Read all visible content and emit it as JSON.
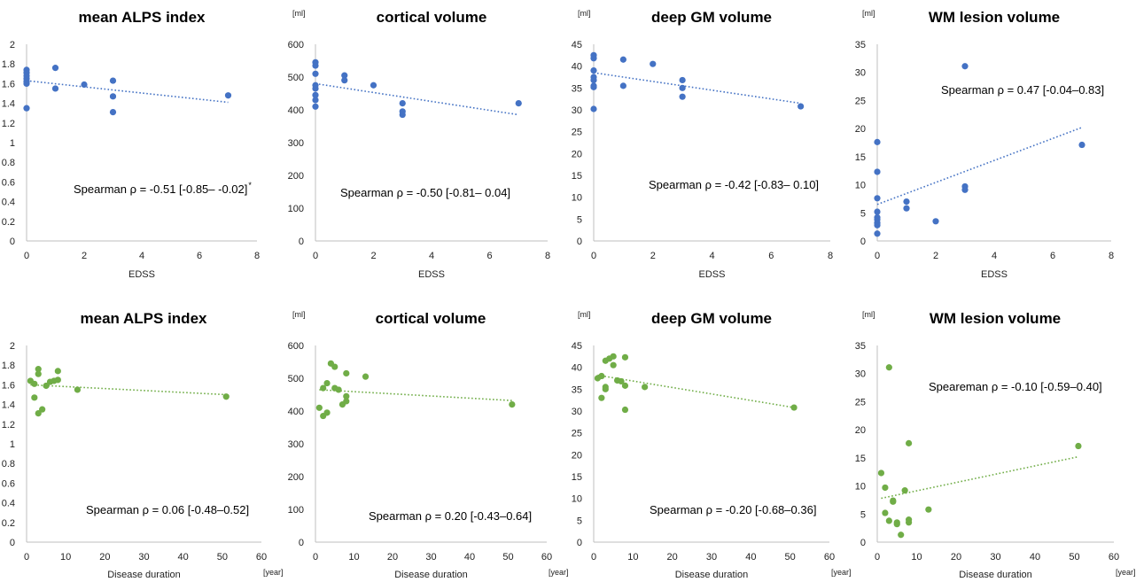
{
  "colors": {
    "top_series": "#4472C4",
    "bottom_series": "#70AD47",
    "axis": "#bfbfbf"
  },
  "chart_data": [
    {
      "type": "scatter",
      "title": "mean ALPS index",
      "unit": "",
      "xlabel": "EDSS",
      "xunit": "",
      "xlim": [
        0,
        8
      ],
      "xticks": [
        0,
        2,
        4,
        6,
        8
      ],
      "ylim": [
        0,
        2
      ],
      "yticks": [
        0,
        0.2,
        0.4,
        0.6,
        0.8,
        1,
        1.2,
        1.4,
        1.6,
        1.8,
        2
      ],
      "ytick_labels": [
        "0",
        "0.2",
        "0.4",
        "0.6",
        "0.8",
        "1",
        "1.2",
        "1.4",
        "1.6",
        "1.8",
        "2"
      ],
      "color": "#4472C4",
      "points": [
        [
          0,
          1.74
        ],
        [
          0,
          1.71
        ],
        [
          0,
          1.68
        ],
        [
          0,
          1.65
        ],
        [
          0,
          1.62
        ],
        [
          0,
          1.6
        ],
        [
          0,
          1.35
        ],
        [
          1,
          1.76
        ],
        [
          1,
          1.55
        ],
        [
          2,
          1.59
        ],
        [
          3,
          1.63
        ],
        [
          3,
          1.47
        ],
        [
          3,
          1.31
        ],
        [
          7,
          1.48
        ]
      ],
      "trend": [
        [
          0,
          1.63
        ],
        [
          7,
          1.41
        ]
      ],
      "annotation": "Spearman ρ = -0.51 [-0.85– -0.02]",
      "annotation_sup": "*"
    },
    {
      "type": "scatter",
      "title": "cortical volume",
      "unit": "[ml]",
      "xlabel": "EDSS",
      "xunit": "",
      "xlim": [
        0,
        8
      ],
      "xticks": [
        0,
        2,
        4,
        6,
        8
      ],
      "ylim": [
        0,
        600
      ],
      "yticks": [
        0,
        100,
        200,
        300,
        400,
        500,
        600
      ],
      "ytick_labels": [
        "0",
        "100",
        "200",
        "300",
        "400",
        "500",
        "600"
      ],
      "color": "#4472C4",
      "points": [
        [
          0,
          545
        ],
        [
          0,
          535
        ],
        [
          0,
          510
        ],
        [
          0,
          475
        ],
        [
          0,
          465
        ],
        [
          0,
          445
        ],
        [
          0,
          430
        ],
        [
          0,
          410
        ],
        [
          1,
          505
        ],
        [
          1,
          490
        ],
        [
          2,
          475
        ],
        [
          3,
          420
        ],
        [
          3,
          395
        ],
        [
          3,
          385
        ],
        [
          7,
          420
        ]
      ],
      "trend": [
        [
          0,
          480
        ],
        [
          7,
          385
        ]
      ],
      "annotation": "Spearman ρ = -0.50 [-0.81– 0.04]",
      "annotation_sup": ""
    },
    {
      "type": "scatter",
      "title": "deep GM volume",
      "unit": "[ml]",
      "xlabel": "EDSS",
      "xunit": "",
      "xlim": [
        0,
        8
      ],
      "xticks": [
        0,
        2,
        4,
        6,
        8
      ],
      "ylim": [
        0,
        45
      ],
      "yticks": [
        0,
        5,
        10,
        15,
        20,
        25,
        30,
        35,
        40,
        45
      ],
      "ytick_labels": [
        "0",
        "5",
        "10",
        "15",
        "20",
        "25",
        "30",
        "35",
        "40",
        "45"
      ],
      "color": "#4472C4",
      "points": [
        [
          0,
          42.5
        ],
        [
          0,
          41.8
        ],
        [
          0,
          39
        ],
        [
          0,
          37.5
        ],
        [
          0,
          36.8
        ],
        [
          0,
          35.5
        ],
        [
          0,
          35.2
        ],
        [
          0,
          30.2
        ],
        [
          1,
          41.5
        ],
        [
          1,
          35.5
        ],
        [
          2,
          40.5
        ],
        [
          3,
          36.8
        ],
        [
          3,
          35
        ],
        [
          3,
          33
        ],
        [
          7,
          30.8
        ]
      ],
      "trend": [
        [
          0,
          38.5
        ],
        [
          7,
          31.5
        ]
      ],
      "annotation": "Spearman ρ = -0.42 [-0.83– 0.10]",
      "annotation_sup": ""
    },
    {
      "type": "scatter",
      "title": "WM lesion volume",
      "unit": "[ml]",
      "xlabel": "EDSS",
      "xunit": "",
      "xlim": [
        0,
        8
      ],
      "xticks": [
        0,
        2,
        4,
        6,
        8
      ],
      "ylim": [
        0,
        35
      ],
      "yticks": [
        0,
        5,
        10,
        15,
        20,
        25,
        30,
        35
      ],
      "ytick_labels": [
        "0",
        "5",
        "10",
        "15",
        "20",
        "25",
        "30",
        "35"
      ],
      "color": "#4472C4",
      "points": [
        [
          0,
          17.6
        ],
        [
          0,
          12.3
        ],
        [
          0,
          7.6
        ],
        [
          0,
          5.2
        ],
        [
          0,
          4.2
        ],
        [
          0,
          3.8
        ],
        [
          0,
          3.2
        ],
        [
          0,
          2.8
        ],
        [
          0,
          1.3
        ],
        [
          1,
          7
        ],
        [
          1,
          5.8
        ],
        [
          2,
          3.5
        ],
        [
          3,
          31.1
        ],
        [
          3,
          9.7
        ],
        [
          3,
          9.1
        ],
        [
          7,
          17.1
        ]
      ],
      "trend": [
        [
          0,
          6.5
        ],
        [
          7,
          20.2
        ]
      ],
      "annotation": "Spearman ρ = 0.47 [-0.04–0.83]",
      "annotation_sup": ""
    },
    {
      "type": "scatter",
      "title": "mean ALPS index",
      "unit": "",
      "xlabel": "Disease duration",
      "xunit": "[year]",
      "xlim": [
        0,
        60
      ],
      "xticks": [
        0,
        10,
        20,
        30,
        40,
        50,
        60
      ],
      "ylim": [
        0,
        2
      ],
      "yticks": [
        0,
        0.2,
        0.4,
        0.6,
        0.8,
        1,
        1.2,
        1.4,
        1.6,
        1.8,
        2
      ],
      "ytick_labels": [
        "0",
        "0.2",
        "0.4",
        "0.6",
        "0.8",
        "1",
        "1.2",
        "1.4",
        "1.6",
        "1.8",
        "2"
      ],
      "color": "#70AD47",
      "points": [
        [
          1,
          1.64
        ],
        [
          2,
          1.61
        ],
        [
          2,
          1.47
        ],
        [
          3,
          1.76
        ],
        [
          3,
          1.71
        ],
        [
          3,
          1.31
        ],
        [
          4,
          1.35
        ],
        [
          5,
          1.59
        ],
        [
          6,
          1.63
        ],
        [
          7,
          1.64
        ],
        [
          8,
          1.74
        ],
        [
          8,
          1.65
        ],
        [
          13,
          1.55
        ],
        [
          51,
          1.48
        ]
      ],
      "trend": [
        [
          1,
          1.6
        ],
        [
          51,
          1.5
        ]
      ],
      "annotation": "Spearman ρ = 0.06 [-0.48–0.52]",
      "annotation_sup": ""
    },
    {
      "type": "scatter",
      "title": "cortical volume",
      "unit": "[ml]",
      "xlabel": "Disease duration",
      "xunit": "[year]",
      "xlim": [
        0,
        60
      ],
      "xticks": [
        0,
        10,
        20,
        30,
        40,
        50,
        60
      ],
      "ylim": [
        0,
        600
      ],
      "yticks": [
        0,
        100,
        200,
        300,
        400,
        500,
        600
      ],
      "ytick_labels": [
        "0",
        "100",
        "200",
        "300",
        "400",
        "500",
        "600"
      ],
      "color": "#70AD47",
      "points": [
        [
          1,
          410
        ],
        [
          2,
          470
        ],
        [
          2,
          385
        ],
        [
          3,
          485
        ],
        [
          3,
          395
        ],
        [
          4,
          545
        ],
        [
          5,
          535
        ],
        [
          5,
          470
        ],
        [
          6,
          465
        ],
        [
          7,
          420
        ],
        [
          8,
          515
        ],
        [
          8,
          445
        ],
        [
          8,
          430
        ],
        [
          13,
          505
        ],
        [
          51,
          420
        ]
      ],
      "trend": [
        [
          1,
          465
        ],
        [
          51,
          432
        ]
      ],
      "annotation": "Spearman ρ = 0.20 [-0.43–0.64]",
      "annotation_sup": ""
    },
    {
      "type": "scatter",
      "title": "deep GM volume",
      "unit": "[ml]",
      "xlabel": "Disease duration",
      "xunit": "[year]",
      "xlim": [
        0,
        60
      ],
      "xticks": [
        0,
        10,
        20,
        30,
        40,
        50,
        60
      ],
      "ylim": [
        0,
        45
      ],
      "yticks": [
        0,
        5,
        10,
        15,
        20,
        25,
        30,
        35,
        40,
        45
      ],
      "ytick_labels": [
        "0",
        "5",
        "10",
        "15",
        "20",
        "25",
        "30",
        "35",
        "40",
        "45"
      ],
      "color": "#70AD47",
      "points": [
        [
          1,
          37.5
        ],
        [
          2,
          38
        ],
        [
          2,
          33
        ],
        [
          3,
          41.5
        ],
        [
          3,
          35.5
        ],
        [
          3,
          35
        ],
        [
          4,
          42
        ],
        [
          5,
          42.5
        ],
        [
          5,
          40.5
        ],
        [
          6,
          37
        ],
        [
          7,
          36.8
        ],
        [
          8,
          42.3
        ],
        [
          8,
          35.8
        ],
        [
          8,
          30.3
        ],
        [
          13,
          35.5
        ],
        [
          51,
          30.8
        ]
      ],
      "trend": [
        [
          1,
          38.2
        ],
        [
          51,
          30.8
        ]
      ],
      "annotation": "Spearman ρ = -0.20 [-0.68–0.36]",
      "annotation_sup": ""
    },
    {
      "type": "scatter",
      "title": "WM lesion volume",
      "unit": "[ml]",
      "xlabel": "Disease duration",
      "xunit": "[year]",
      "xlim": [
        0,
        60
      ],
      "xticks": [
        0,
        10,
        20,
        30,
        40,
        50,
        60
      ],
      "ylim": [
        0,
        35
      ],
      "yticks": [
        0,
        5,
        10,
        15,
        20,
        25,
        30,
        35
      ],
      "ytick_labels": [
        "0",
        "5",
        "10",
        "15",
        "20",
        "25",
        "30",
        "35"
      ],
      "color": "#70AD47",
      "points": [
        [
          1,
          12.3
        ],
        [
          2,
          9.7
        ],
        [
          2,
          5.2
        ],
        [
          3,
          3.8
        ],
        [
          3,
          31.1
        ],
        [
          4,
          7.2
        ],
        [
          4,
          7.4
        ],
        [
          5,
          3.5
        ],
        [
          5,
          3.2
        ],
        [
          6,
          1.3
        ],
        [
          7,
          9.2
        ],
        [
          8,
          17.6
        ],
        [
          8,
          4
        ],
        [
          8,
          3.5
        ],
        [
          13,
          5.8
        ],
        [
          51,
          17.1
        ]
      ],
      "trend": [
        [
          1,
          7.8
        ],
        [
          51,
          15.2
        ]
      ],
      "annotation": "Speareman ρ = -0.10 [-0.59–0.40]",
      "annotation_sup": ""
    }
  ]
}
